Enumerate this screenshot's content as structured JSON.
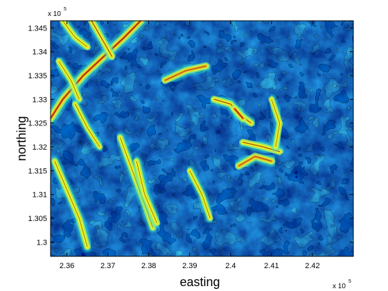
{
  "chart_data": {
    "type": "heatmap",
    "subtype": "filled-contour",
    "title": "",
    "xlabel": "easting",
    "ylabel": "northing",
    "xlim": [
      235600,
      243000
    ],
    "ylim": [
      129700,
      134650
    ],
    "x_multiplier_label": "x 10",
    "x_multiplier_exp": "5",
    "y_multiplier_label": "x 10",
    "y_multiplier_exp": "5",
    "x_ticks": [
      {
        "value": 236000,
        "label": "2.36"
      },
      {
        "value": 237000,
        "label": "2.37"
      },
      {
        "value": 238000,
        "label": "2.38"
      },
      {
        "value": 239000,
        "label": "2.39"
      },
      {
        "value": 240000,
        "label": "2.4"
      },
      {
        "value": 241000,
        "label": "2.41"
      },
      {
        "value": 242000,
        "label": "2.42"
      }
    ],
    "y_ticks": [
      {
        "value": 130000,
        "label": "1.3"
      },
      {
        "value": 130500,
        "label": "1.305"
      },
      {
        "value": 131000,
        "label": "1.31"
      },
      {
        "value": 131500,
        "label": "1.315"
      },
      {
        "value": 132000,
        "label": "1.32"
      },
      {
        "value": 132500,
        "label": "1.325"
      },
      {
        "value": 133000,
        "label": "1.33"
      },
      {
        "value": 133500,
        "label": "1.335"
      },
      {
        "value": 134000,
        "label": "1.34"
      },
      {
        "value": 134500,
        "label": "1.345"
      }
    ],
    "colormap": [
      "#00007f",
      "#0033b2",
      "#0066e0",
      "#0aa8f0",
      "#2ee0d0",
      "#9ef070",
      "#f0f020",
      "#f0a020",
      "#e05010",
      "#a00000"
    ],
    "contour_line_color": "#000000",
    "ridges": [
      {
        "points": [
          [
            235600,
            132600
          ],
          [
            235900,
            133000
          ],
          [
            236400,
            133500
          ],
          [
            236900,
            133900
          ],
          [
            237400,
            134300
          ],
          [
            237800,
            134650
          ]
        ],
        "intensity": 0.95
      },
      {
        "points": [
          [
            235900,
            134650
          ],
          [
            236200,
            134300
          ],
          [
            236500,
            134100
          ]
        ],
        "intensity": 0.6
      },
      {
        "points": [
          [
            236600,
            134650
          ],
          [
            236900,
            134200
          ],
          [
            237100,
            133900
          ]
        ],
        "intensity": 0.7
      },
      {
        "points": [
          [
            235700,
            131700
          ],
          [
            236000,
            131100
          ],
          [
            236300,
            130500
          ],
          [
            236500,
            129900
          ]
        ],
        "intensity": 0.6
      },
      {
        "points": [
          [
            237300,
            132200
          ],
          [
            237600,
            131500
          ],
          [
            237900,
            130800
          ],
          [
            238100,
            130300
          ]
        ],
        "intensity": 0.55
      },
      {
        "points": [
          [
            237700,
            131700
          ],
          [
            237900,
            131000
          ],
          [
            238200,
            130400
          ]
        ],
        "intensity": 0.6
      },
      {
        "points": [
          [
            238400,
            133400
          ],
          [
            238900,
            133600
          ],
          [
            239400,
            133700
          ]
        ],
        "intensity": 0.75
      },
      {
        "points": [
          [
            239600,
            133000
          ],
          [
            240000,
            132900
          ],
          [
            240200,
            132700
          ],
          [
            240500,
            132500
          ]
        ],
        "intensity": 0.7
      },
      {
        "points": [
          [
            240100,
            132800
          ],
          [
            240300,
            132600
          ]
        ],
        "intensity": 0.9
      },
      {
        "points": [
          [
            240300,
            132100
          ],
          [
            240800,
            132000
          ],
          [
            241200,
            131900
          ]
        ],
        "intensity": 0.65
      },
      {
        "points": [
          [
            240200,
            131600
          ],
          [
            240600,
            131800
          ],
          [
            241000,
            131700
          ]
        ],
        "intensity": 0.8
      },
      {
        "points": [
          [
            241000,
            133000
          ],
          [
            241200,
            132500
          ],
          [
            241100,
            132000
          ]
        ],
        "intensity": 0.5
      },
      {
        "points": [
          [
            239000,
            131500
          ],
          [
            239300,
            131000
          ],
          [
            239500,
            130500
          ]
        ],
        "intensity": 0.45
      },
      {
        "points": [
          [
            235800,
            133800
          ],
          [
            236100,
            133400
          ],
          [
            236300,
            133000
          ]
        ],
        "intensity": 0.55
      },
      {
        "points": [
          [
            236200,
            132900
          ],
          [
            236500,
            132400
          ],
          [
            236800,
            132000
          ]
        ],
        "intensity": 0.45
      }
    ]
  }
}
